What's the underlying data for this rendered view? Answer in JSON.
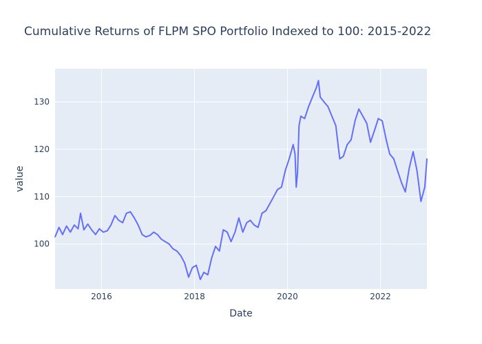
{
  "chart_data": {
    "type": "line",
    "title": "Cumulative Returns of FLPM SPO Portfolio Indexed to 100: 2015-2022",
    "xlabel": "Date",
    "ylabel": "value",
    "xlim": [
      "2015-01-01",
      "2023-01-01"
    ],
    "ylim": [
      90.5,
      137
    ],
    "x_ticks": [
      "2016",
      "2018",
      "2020",
      "2022"
    ],
    "y_ticks": [
      100,
      110,
      120,
      130
    ],
    "grid": true,
    "legend": "none",
    "colors": {
      "line": "#636efa",
      "plot_bg": "#e5ecf6",
      "grid": "#ffffff",
      "text": "#2a3f5f"
    },
    "series": [
      {
        "x": [
          "2015-01-01",
          "2015-02-01",
          "2015-03-01",
          "2015-04-01",
          "2015-05-01",
          "2015-06-01",
          "2015-07-01",
          "2015-07-20",
          "2015-08-15",
          "2015-09-15",
          "2015-10-15",
          "2015-11-15",
          "2015-12-15",
          "2016-01-15",
          "2016-02-15",
          "2016-03-15",
          "2016-04-15",
          "2016-05-15",
          "2016-06-15",
          "2016-07-15",
          "2016-08-15",
          "2016-09-15",
          "2016-10-15",
          "2016-11-15",
          "2016-12-15",
          "2017-01-15",
          "2017-02-15",
          "2017-03-15",
          "2017-04-15",
          "2017-05-15",
          "2017-06-15",
          "2017-07-15",
          "2017-08-15",
          "2017-09-15",
          "2017-10-15",
          "2017-11-15",
          "2017-12-15",
          "2018-01-15",
          "2018-02-15",
          "2018-03-15",
          "2018-04-15",
          "2018-05-15",
          "2018-06-15",
          "2018-07-15",
          "2018-08-15",
          "2018-09-15",
          "2018-10-15",
          "2018-11-15",
          "2018-12-15",
          "2019-01-15",
          "2019-02-15",
          "2019-03-15",
          "2019-04-15",
          "2019-05-15",
          "2019-06-15",
          "2019-07-15",
          "2019-08-15",
          "2019-09-15",
          "2019-10-15",
          "2019-11-15",
          "2019-12-15",
          "2020-01-15",
          "2020-02-15",
          "2020-03-01",
          "2020-03-10",
          "2020-03-20",
          "2020-04-01",
          "2020-04-15",
          "2020-05-15",
          "2020-06-15",
          "2020-07-15",
          "2020-08-15",
          "2020-09-01",
          "2020-09-15",
          "2020-10-15",
          "2020-11-15",
          "2020-12-15",
          "2021-01-15",
          "2021-02-15",
          "2021-03-15",
          "2021-04-15",
          "2021-05-15",
          "2021-06-15",
          "2021-07-15",
          "2021-08-15",
          "2021-09-15",
          "2021-10-15",
          "2021-11-15",
          "2021-12-15",
          "2022-01-15",
          "2022-02-15",
          "2022-03-15",
          "2022-04-15",
          "2022-05-15",
          "2022-06-15",
          "2022-07-15",
          "2022-08-15",
          "2022-09-15",
          "2022-10-15",
          "2022-11-15",
          "2022-12-15",
          "2023-01-01"
        ],
        "values": [
          101.5,
          103.5,
          102.0,
          103.8,
          102.5,
          104.0,
          103.2,
          106.5,
          103.0,
          104.2,
          103.0,
          102.0,
          103.2,
          102.5,
          102.8,
          104.0,
          106.0,
          105.0,
          104.5,
          106.5,
          106.8,
          105.5,
          104.0,
          102.0,
          101.5,
          101.8,
          102.5,
          102.0,
          101.0,
          100.5,
          100.0,
          99.0,
          98.5,
          97.5,
          96.0,
          93.0,
          95.0,
          95.5,
          92.5,
          94.0,
          93.5,
          97.0,
          99.5,
          98.5,
          103.0,
          102.5,
          100.5,
          102.5,
          105.5,
          102.5,
          104.5,
          105.0,
          104.0,
          103.5,
          106.5,
          107.0,
          108.5,
          110.0,
          111.5,
          112.0,
          115.5,
          118.0,
          121.0,
          119.0,
          112.0,
          115.0,
          125.0,
          127.0,
          126.5,
          129.0,
          131.0,
          133.0,
          134.5,
          131.0,
          130.0,
          129.0,
          127.0,
          125.0,
          118.0,
          118.5,
          121.0,
          122.0,
          126.0,
          128.5,
          127.0,
          125.5,
          121.5,
          124.0,
          126.5,
          126.0,
          122.0,
          119.0,
          118.0,
          115.5,
          113.0,
          111.0,
          116.0,
          119.5,
          115.5,
          109.0,
          112.0,
          118.0
        ]
      }
    ]
  }
}
